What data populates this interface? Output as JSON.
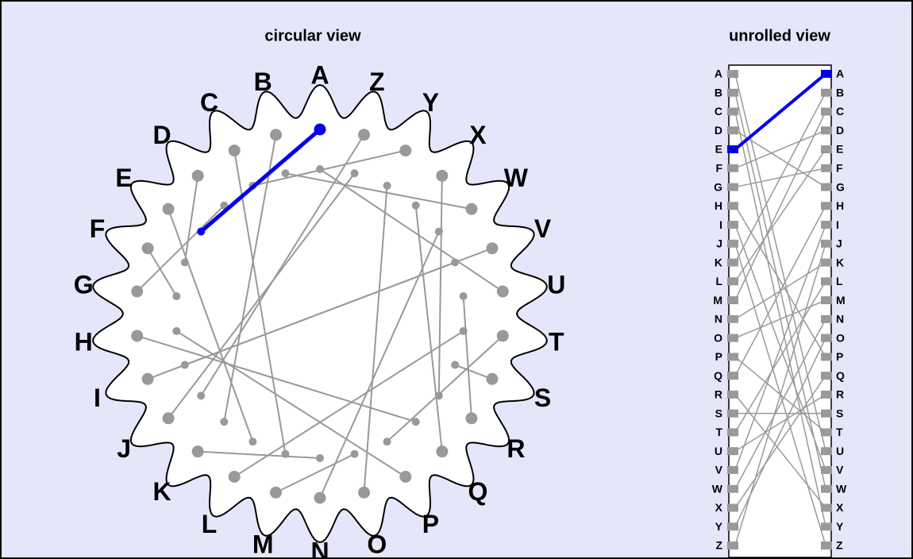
{
  "circular": {
    "title": "circular view"
  },
  "unrolled": {
    "title": "unrolled view"
  },
  "letters": [
    "A",
    "B",
    "C",
    "D",
    "E",
    "F",
    "G",
    "H",
    "I",
    "J",
    "K",
    "L",
    "M",
    "N",
    "O",
    "P",
    "Q",
    "R",
    "S",
    "T",
    "U",
    "V",
    "W",
    "X",
    "Y",
    "Z"
  ],
  "wiring": [
    "E",
    "K",
    "M",
    "F",
    "L",
    "G",
    "D",
    "Q",
    "V",
    "Z",
    "N",
    "T",
    "O",
    "W",
    "Y",
    "H",
    "X",
    "U",
    "S",
    "P",
    "A",
    "I",
    "B",
    "R",
    "C",
    "J"
  ],
  "highlight": "A",
  "line_color": "#999999",
  "highlight_color": "#0000ee",
  "background": "#e6e6fa"
}
